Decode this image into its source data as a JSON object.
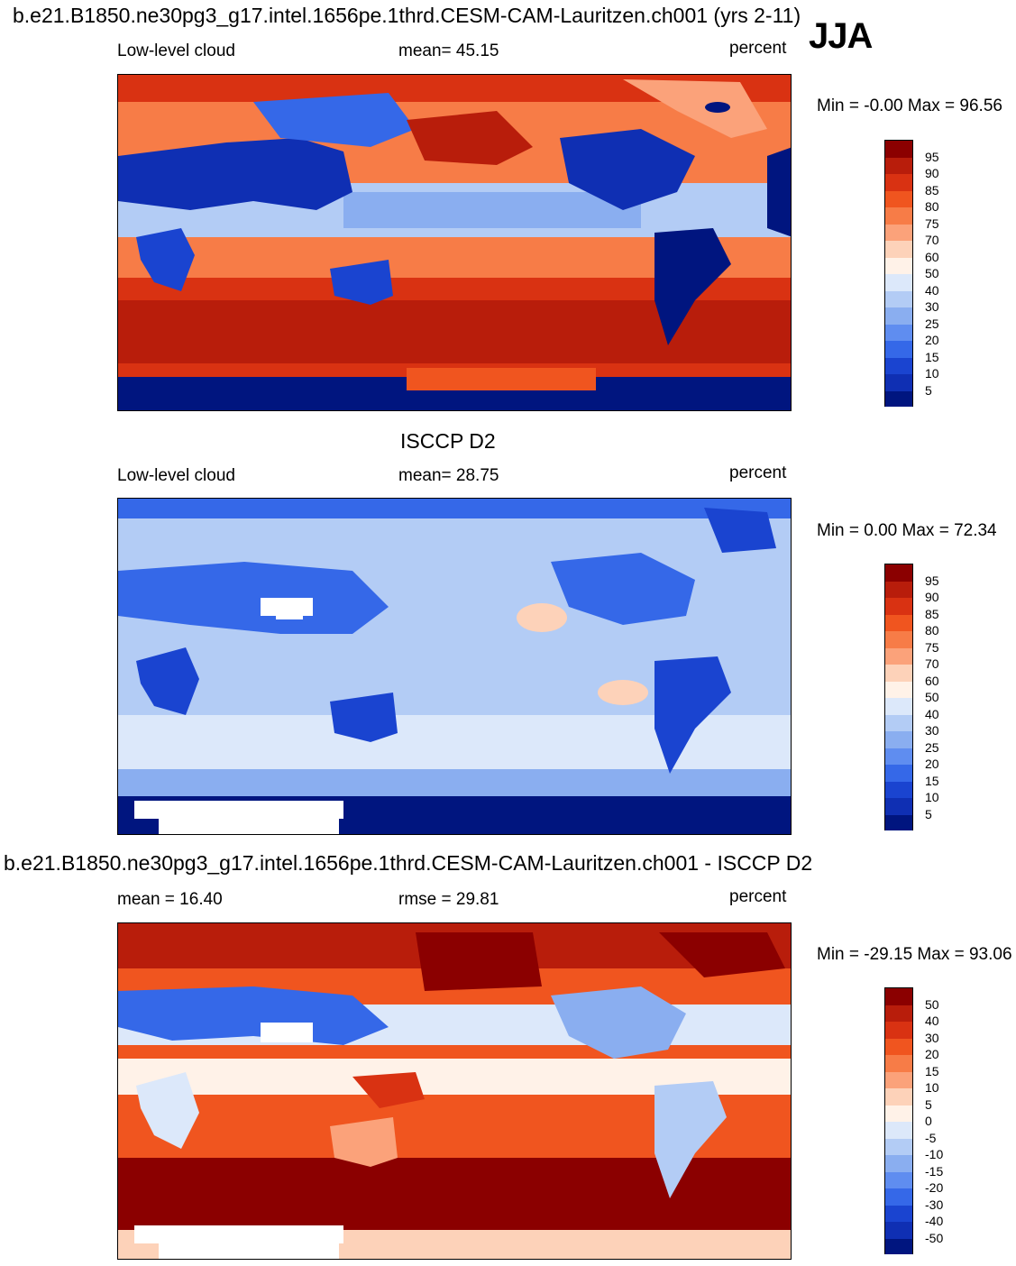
{
  "figure": {
    "case_title": "b.e21.B1850.ne30pg3_g17.intel.1656pe.1thrd.CESM-CAM-Lauritzen.ch001 (yrs 2-11)",
    "season": "JJA",
    "obs_title": "ISCCP D2",
    "diff_title": "b.e21.B1850.ne30pg3_g17.intel.1656pe.1thrd.CESM-CAM-Lauritzen.ch001 - ISCCP D2"
  },
  "panels": [
    {
      "left_label": "Low-level cloud",
      "center_label": "mean=  45.15",
      "units": "percent",
      "minmax": "Min =  -0.00 Max =  96.56"
    },
    {
      "left_label": "Low-level cloud",
      "center_label": "mean=  28.75",
      "units": "percent",
      "minmax": "Min =   0.00 Max =  72.34"
    },
    {
      "left_label": "mean =  16.40",
      "center_label": "rmse =  29.81",
      "units": "percent",
      "minmax": "Min = -29.15 Max =  93.06"
    }
  ],
  "chart_data": [
    {
      "type": "heatmap",
      "title": "b.e21.B1850.ne30pg3_g17.intel.1656pe.1thrd.CESM-CAM-Lauritzen.ch001 (yrs 2-11)",
      "variable": "Low-level cloud",
      "units": "percent",
      "mean": 45.15,
      "min": -0.0,
      "max": 96.56,
      "colorbar_levels": [
        "95",
        "90",
        "85",
        "80",
        "75",
        "70",
        "60",
        "50",
        "40",
        "30",
        "25",
        "20",
        "15",
        "10",
        "5"
      ],
      "colors": [
        "#8b0000",
        "#b81d0b",
        "#d93212",
        "#f0551f",
        "#f77c47",
        "#fba27a",
        "#fdd2b9",
        "#fff2e8",
        "#dce8fa",
        "#b3ccf5",
        "#8aaef0",
        "#5f8df0",
        "#3568e8",
        "#1a44d0",
        "#0f2fb3",
        "#00157f"
      ]
    },
    {
      "type": "heatmap",
      "title": "ISCCP D2",
      "variable": "Low-level cloud",
      "units": "percent",
      "mean": 28.75,
      "min": 0.0,
      "max": 72.34,
      "colorbar_levels": [
        "95",
        "90",
        "85",
        "80",
        "75",
        "70",
        "60",
        "50",
        "40",
        "30",
        "25",
        "20",
        "15",
        "10",
        "5"
      ],
      "colors": [
        "#8b0000",
        "#b81d0b",
        "#d93212",
        "#f0551f",
        "#f77c47",
        "#fba27a",
        "#fdd2b9",
        "#fff2e8",
        "#dce8fa",
        "#b3ccf5",
        "#8aaef0",
        "#5f8df0",
        "#3568e8",
        "#1a44d0",
        "#0f2fb3",
        "#00157f"
      ]
    },
    {
      "type": "heatmap",
      "title": "b.e21.B1850.ne30pg3_g17.intel.1656pe.1thrd.CESM-CAM-Lauritzen.ch001 - ISCCP D2",
      "units": "percent",
      "mean": 16.4,
      "rmse": 29.81,
      "min": -29.15,
      "max": 93.06,
      "colorbar_levels": [
        "50",
        "40",
        "30",
        "20",
        "15",
        "10",
        "5",
        "0",
        "-5",
        "-10",
        "-15",
        "-20",
        "-30",
        "-40",
        "-50"
      ],
      "colors": [
        "#8b0000",
        "#b81d0b",
        "#d93212",
        "#f0551f",
        "#f77c47",
        "#fba27a",
        "#fdd2b9",
        "#fff2e8",
        "#dce8fa",
        "#b3ccf5",
        "#8aaef0",
        "#5f8df0",
        "#3568e8",
        "#1a44d0",
        "#0f2fb3",
        "#00157f"
      ]
    }
  ]
}
